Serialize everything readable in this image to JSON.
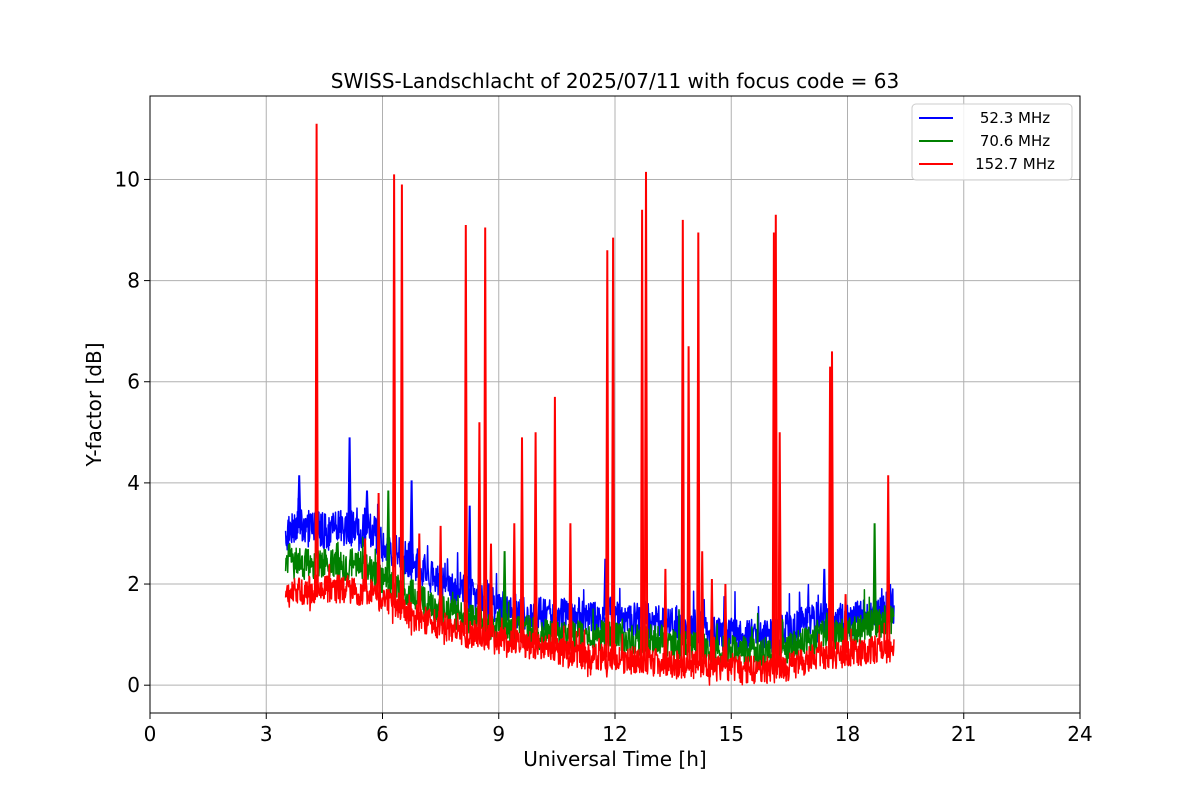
{
  "chart_data": {
    "type": "line",
    "title": "SWISS-Landschlacht of 2025/07/11 with focus code = 63",
    "xlabel": "Universal Time [h]",
    "ylabel": "Y-factor [dB]",
    "xlim": [
      0,
      24
    ],
    "ylim": [
      -0.55,
      11.65
    ],
    "xticks": [
      0,
      3,
      6,
      9,
      12,
      15,
      18,
      21,
      24
    ],
    "xtick_labels": [
      "0",
      "3",
      "6",
      "9",
      "12",
      "15",
      "18",
      "21",
      "24"
    ],
    "yticks": [
      0,
      2,
      4,
      6,
      8,
      10
    ],
    "ytick_labels": [
      "0",
      "2",
      "4",
      "6",
      "8",
      "10"
    ],
    "grid": true,
    "legend_position": "top-right",
    "series": [
      {
        "name": " 52.3 MHz",
        "color": "#0000ff",
        "x": [
          3.5,
          3.6,
          3.8,
          4.0,
          4.2,
          4.4,
          4.6,
          4.8,
          5.0,
          5.2,
          5.4,
          5.6,
          5.8,
          6.0,
          6.2,
          6.4,
          6.6,
          6.8,
          7.0,
          7.2,
          7.4,
          7.6,
          7.8,
          8.0,
          8.2,
          8.4,
          8.6,
          8.8,
          9.0,
          9.2,
          9.4,
          9.6,
          9.8,
          10.0,
          10.2,
          10.4,
          10.6,
          10.8,
          11.0,
          11.2,
          11.4,
          11.6,
          11.8,
          12.0,
          12.2,
          12.4,
          12.6,
          12.8,
          13.0,
          13.2,
          13.4,
          13.6,
          13.8,
          14.0,
          14.2,
          14.4,
          14.6,
          14.8,
          15.0,
          15.2,
          15.4,
          15.6,
          15.8,
          16.0,
          16.2,
          16.4,
          16.6,
          16.8,
          17.0,
          17.2,
          17.4,
          17.6,
          17.8,
          18.0,
          18.2,
          18.4,
          18.6,
          18.8,
          19.0,
          19.2
        ],
        "values": [
          2.9,
          3.1,
          3.2,
          3.1,
          3.2,
          3.1,
          3.0,
          3.1,
          3.1,
          3.1,
          3.0,
          3.1,
          3.0,
          2.8,
          2.7,
          2.6,
          2.5,
          2.4,
          2.3,
          2.2,
          2.1,
          2.0,
          1.9,
          1.9,
          1.8,
          1.7,
          1.6,
          1.6,
          1.5,
          1.5,
          1.5,
          1.4,
          1.4,
          1.4,
          1.4,
          1.3,
          1.4,
          1.4,
          1.4,
          1.4,
          1.4,
          1.3,
          1.4,
          1.4,
          1.3,
          1.3,
          1.3,
          1.3,
          1.2,
          1.3,
          1.2,
          1.2,
          1.2,
          1.1,
          1.1,
          1.1,
          1.0,
          1.0,
          1.0,
          1.0,
          1.0,
          1.0,
          0.9,
          1.0,
          1.0,
          1.1,
          1.1,
          1.2,
          1.2,
          1.3,
          1.3,
          1.2,
          1.3,
          1.3,
          1.3,
          1.4,
          1.4,
          1.4,
          1.5,
          1.5
        ],
        "band": 0.35,
        "spikes": [
          [
            3.85,
            4.15
          ],
          [
            5.15,
            4.9
          ],
          [
            5.6,
            3.85
          ],
          [
            6.75,
            4.05
          ],
          [
            8.25,
            3.55
          ],
          [
            11.75,
            2.5
          ],
          [
            17.4,
            2.3
          ],
          [
            19.1,
            2.0
          ]
        ]
      },
      {
        "name": " 70.6 MHz",
        "color": "#008000",
        "x": [
          3.5,
          3.6,
          3.8,
          4.0,
          4.2,
          4.4,
          4.6,
          4.8,
          5.0,
          5.2,
          5.4,
          5.6,
          5.8,
          6.0,
          6.2,
          6.4,
          6.6,
          6.8,
          7.0,
          7.2,
          7.4,
          7.6,
          7.8,
          8.0,
          8.2,
          8.4,
          8.6,
          8.8,
          9.0,
          9.2,
          9.4,
          9.6,
          9.8,
          10.0,
          10.2,
          10.4,
          10.6,
          10.8,
          11.0,
          11.2,
          11.4,
          11.6,
          11.8,
          12.0,
          12.2,
          12.4,
          12.6,
          12.8,
          13.0,
          13.2,
          13.4,
          13.6,
          13.8,
          14.0,
          14.2,
          14.4,
          14.6,
          14.8,
          15.0,
          15.2,
          15.4,
          15.6,
          15.8,
          16.0,
          16.2,
          16.4,
          16.6,
          16.8,
          17.0,
          17.2,
          17.4,
          17.6,
          17.8,
          18.0,
          18.2,
          18.4,
          18.6,
          18.8,
          19.0,
          19.2
        ],
        "values": [
          2.5,
          2.5,
          2.5,
          2.4,
          2.4,
          2.4,
          2.4,
          2.4,
          2.3,
          2.4,
          2.4,
          2.3,
          2.2,
          2.1,
          2.0,
          1.9,
          1.8,
          1.8,
          1.7,
          1.6,
          1.5,
          1.5,
          1.4,
          1.4,
          1.3,
          1.3,
          1.2,
          1.2,
          1.2,
          1.2,
          1.1,
          1.1,
          1.1,
          1.0,
          1.0,
          1.0,
          1.0,
          1.0,
          1.0,
          1.0,
          1.0,
          1.0,
          1.0,
          1.0,
          0.9,
          0.9,
          0.9,
          0.9,
          0.9,
          0.9,
          0.8,
          0.8,
          0.8,
          0.8,
          0.8,
          0.7,
          0.7,
          0.7,
          0.7,
          0.7,
          0.7,
          0.6,
          0.6,
          0.6,
          0.7,
          0.7,
          0.8,
          0.8,
          0.9,
          0.9,
          1.0,
          1.0,
          1.0,
          1.1,
          1.1,
          1.1,
          1.2,
          1.2,
          1.3,
          1.3
        ],
        "band": 0.3,
        "spikes": [
          [
            6.15,
            3.85
          ],
          [
            9.15,
            2.65
          ],
          [
            18.7,
            3.2
          ]
        ]
      },
      {
        "name": " 152.7 MHz",
        "color": "#ff0000",
        "x": [
          3.5,
          3.6,
          3.8,
          4.0,
          4.2,
          4.4,
          4.6,
          4.8,
          5.0,
          5.2,
          5.4,
          5.6,
          5.8,
          6.0,
          6.2,
          6.4,
          6.6,
          6.8,
          7.0,
          7.2,
          7.4,
          7.6,
          7.8,
          8.0,
          8.2,
          8.4,
          8.6,
          8.8,
          9.0,
          9.2,
          9.4,
          9.6,
          9.8,
          10.0,
          10.2,
          10.4,
          10.6,
          10.8,
          11.0,
          11.2,
          11.4,
          11.6,
          11.8,
          12.0,
          12.2,
          12.4,
          12.6,
          12.8,
          13.0,
          13.2,
          13.4,
          13.6,
          13.8,
          14.0,
          14.2,
          14.4,
          14.6,
          14.8,
          15.0,
          15.2,
          15.4,
          15.6,
          15.8,
          16.0,
          16.2,
          16.4,
          16.6,
          16.8,
          17.0,
          17.2,
          17.4,
          17.6,
          17.8,
          18.0,
          18.2,
          18.4,
          18.6,
          18.8,
          19.0,
          19.2
        ],
        "values": [
          1.75,
          1.8,
          1.85,
          1.85,
          1.9,
          1.9,
          1.9,
          1.9,
          1.9,
          1.9,
          1.85,
          1.85,
          1.8,
          1.7,
          1.65,
          1.55,
          1.45,
          1.35,
          1.3,
          1.25,
          1.2,
          1.15,
          1.1,
          1.05,
          1.0,
          1.0,
          0.95,
          0.95,
          0.9,
          0.9,
          0.85,
          0.85,
          0.8,
          0.8,
          0.75,
          0.7,
          0.65,
          0.6,
          0.6,
          0.55,
          0.55,
          0.55,
          0.55,
          0.55,
          0.5,
          0.5,
          0.5,
          0.5,
          0.45,
          0.45,
          0.45,
          0.4,
          0.4,
          0.4,
          0.4,
          0.35,
          0.35,
          0.35,
          0.35,
          0.35,
          0.3,
          0.3,
          0.3,
          0.3,
          0.35,
          0.35,
          0.4,
          0.45,
          0.5,
          0.55,
          0.6,
          0.6,
          0.6,
          0.65,
          0.65,
          0.65,
          0.7,
          0.7,
          0.7,
          0.75
        ],
        "band": 0.28,
        "spikes": [
          [
            4.3,
            11.1
          ],
          [
            5.55,
            2.9
          ],
          [
            5.9,
            3.8
          ],
          [
            6.3,
            10.1
          ],
          [
            6.5,
            9.9
          ],
          [
            6.95,
            3.0
          ],
          [
            7.5,
            3.15
          ],
          [
            8.15,
            9.1
          ],
          [
            8.5,
            5.2
          ],
          [
            8.65,
            9.05
          ],
          [
            8.8,
            2.8
          ],
          [
            9.4,
            3.2
          ],
          [
            9.6,
            4.9
          ],
          [
            9.95,
            5.0
          ],
          [
            10.45,
            5.7
          ],
          [
            10.85,
            3.2
          ],
          [
            11.8,
            8.6
          ],
          [
            11.95,
            8.85
          ],
          [
            12.7,
            9.4
          ],
          [
            12.8,
            10.15
          ],
          [
            13.3,
            2.3
          ],
          [
            13.75,
            9.2
          ],
          [
            13.9,
            6.7
          ],
          [
            14.15,
            8.95
          ],
          [
            14.25,
            2.65
          ],
          [
            14.5,
            2.1
          ],
          [
            14.85,
            2.0
          ],
          [
            16.1,
            8.95
          ],
          [
            16.15,
            9.3
          ],
          [
            16.25,
            5.0
          ],
          [
            17.55,
            6.3
          ],
          [
            17.6,
            6.6
          ],
          [
            17.95,
            1.8
          ],
          [
            19.05,
            4.15
          ]
        ]
      }
    ]
  }
}
